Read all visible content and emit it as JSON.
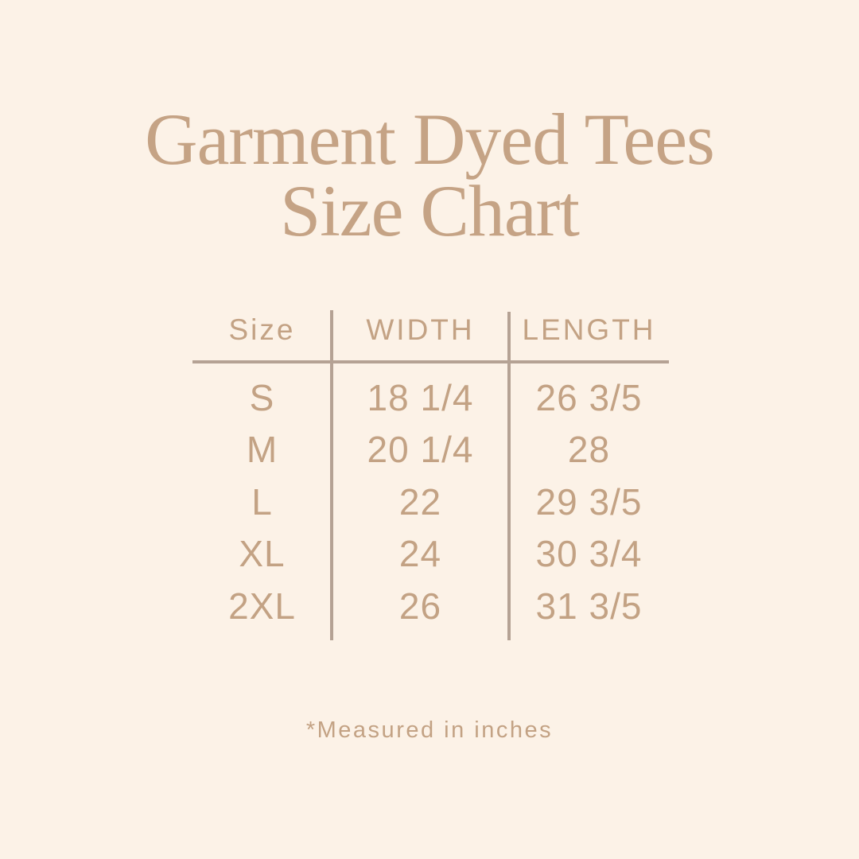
{
  "page": {
    "background_color": "#fcf2e7",
    "accent_text_color": "#c5a385",
    "table_text_color": "#c3a284",
    "line_color": "#b5a294"
  },
  "title": {
    "line1": "Garment Dyed Tees",
    "line2": "Size Chart"
  },
  "table": {
    "headers": [
      "Size",
      "WIDTH",
      "LENGTH"
    ],
    "rows": [
      {
        "size": "S",
        "width": "18 1/4",
        "length": "26 3/5"
      },
      {
        "size": "M",
        "width": "20 1/4",
        "length": "28"
      },
      {
        "size": "L",
        "width": "22",
        "length": "29 3/5"
      },
      {
        "size": "XL",
        "width": "24",
        "length": "30 3/4"
      },
      {
        "size": "2XL",
        "width": "26",
        "length": "31 3/5"
      }
    ]
  },
  "footnote": "*Measured in inches",
  "chart_data": {
    "type": "table",
    "title": "Garment Dyed Tees Size Chart",
    "columns": [
      "Size",
      "WIDTH",
      "LENGTH"
    ],
    "rows": [
      [
        "S",
        "18 1/4",
        "26 3/5"
      ],
      [
        "M",
        "20 1/4",
        "28"
      ],
      [
        "L",
        "22",
        "29 3/5"
      ],
      [
        "XL",
        "24",
        "30 3/4"
      ],
      [
        "2XL",
        "26",
        "31 3/5"
      ]
    ],
    "note": "*Measured in inches",
    "units": "inches"
  }
}
